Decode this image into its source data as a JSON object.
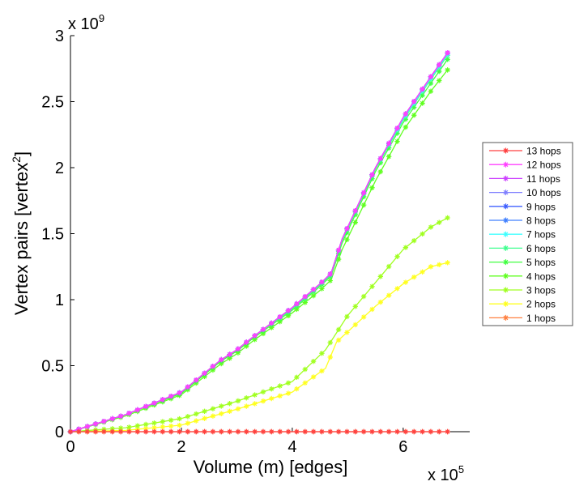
{
  "chart_data": {
    "type": "line",
    "title": "",
    "xlabel": "Volume (m) [edges]",
    "ylabel": "Vertex pairs [vertex",
    "ylabel_sup": "2",
    "ylabel_end": "]",
    "x_exponent_label": "x 10",
    "x_exponent": "5",
    "y_exponent_label": "x 10",
    "y_exponent": "9",
    "xlim": [
      0,
      7.2
    ],
    "ylim": [
      0,
      3
    ],
    "x_scale": 100000,
    "y_scale": 1000000000,
    "xticks": [
      0,
      2,
      4,
      6
    ],
    "xtick_labels": [
      "0",
      "2",
      "4",
      "6"
    ],
    "yticks": [
      0,
      0.5,
      1,
      1.5,
      2,
      2.5,
      3
    ],
    "ytick_labels": [
      "0",
      "0.5",
      "1",
      "1.5",
      "2",
      "2.5",
      "3"
    ],
    "grid": false,
    "legend_position": "right",
    "series": [
      {
        "name": "13 hops",
        "color": "#ff4040",
        "x": [
          0,
          6.8
        ],
        "y": [
          0,
          0
        ]
      },
      {
        "name": "12 hops",
        "color": "#ff40ff",
        "x": [
          0,
          1,
          2,
          2.7,
          3,
          3.3,
          4,
          4.5,
          4.7,
          4.9,
          5.5,
          6,
          6.5,
          6.8
        ],
        "y": [
          0,
          0.13,
          0.3,
          0.54,
          0.62,
          0.72,
          0.94,
          1.12,
          1.2,
          1.46,
          2.0,
          2.38,
          2.69,
          2.87
        ]
      },
      {
        "name": "11 hops",
        "color": "#cc40ff",
        "x": [
          0,
          1,
          2,
          2.7,
          3,
          3.3,
          4,
          4.5,
          4.7,
          4.9,
          5.5,
          6,
          6.5,
          6.8
        ],
        "y": [
          0,
          0.13,
          0.3,
          0.54,
          0.62,
          0.72,
          0.94,
          1.12,
          1.2,
          1.46,
          2.0,
          2.38,
          2.69,
          2.87
        ]
      },
      {
        "name": "10 hops",
        "color": "#8080ff",
        "x": [
          0,
          1,
          2,
          2.7,
          3,
          3.3,
          4,
          4.5,
          4.7,
          4.9,
          5.5,
          6,
          6.5,
          6.8
        ],
        "y": [
          0,
          0.13,
          0.3,
          0.54,
          0.62,
          0.72,
          0.94,
          1.12,
          1.2,
          1.46,
          2.0,
          2.38,
          2.69,
          2.87
        ]
      },
      {
        "name": "9 hops",
        "color": "#4060ff",
        "x": [
          0,
          1,
          2,
          2.7,
          3,
          3.3,
          4,
          4.5,
          4.7,
          4.9,
          5.5,
          6,
          6.5,
          6.8
        ],
        "y": [
          0,
          0.13,
          0.3,
          0.54,
          0.62,
          0.72,
          0.94,
          1.12,
          1.2,
          1.46,
          2.0,
          2.38,
          2.69,
          2.87
        ]
      },
      {
        "name": "8 hops",
        "color": "#4080ff",
        "x": [
          0,
          1,
          2,
          2.7,
          3,
          3.3,
          4,
          4.5,
          4.7,
          4.9,
          5.5,
          6,
          6.5,
          6.8
        ],
        "y": [
          0,
          0.13,
          0.3,
          0.54,
          0.62,
          0.72,
          0.94,
          1.12,
          1.2,
          1.46,
          2.0,
          2.38,
          2.69,
          2.87
        ]
      },
      {
        "name": "7 hops",
        "color": "#40ffff",
        "x": [
          0,
          1,
          2,
          2.7,
          3,
          3.3,
          4,
          4.5,
          4.7,
          4.9,
          5.5,
          6,
          6.5,
          6.8
        ],
        "y": [
          0,
          0.13,
          0.3,
          0.54,
          0.62,
          0.72,
          0.94,
          1.12,
          1.2,
          1.46,
          2.0,
          2.37,
          2.68,
          2.86
        ]
      },
      {
        "name": "6 hops",
        "color": "#40ff90",
        "x": [
          0,
          1,
          2,
          2.7,
          3,
          3.3,
          4,
          4.5,
          4.7,
          4.9,
          5.5,
          6,
          6.5,
          6.8
        ],
        "y": [
          0,
          0.13,
          0.3,
          0.54,
          0.62,
          0.72,
          0.93,
          1.11,
          1.19,
          1.45,
          1.99,
          2.36,
          2.67,
          2.85
        ]
      },
      {
        "name": "5 hops",
        "color": "#40ff40",
        "x": [
          0,
          1,
          2,
          2.7,
          3,
          3.3,
          4,
          4.5,
          4.7,
          4.9,
          5.5,
          6,
          6.5,
          6.8
        ],
        "y": [
          0,
          0.13,
          0.29,
          0.53,
          0.61,
          0.71,
          0.92,
          1.1,
          1.18,
          1.43,
          1.97,
          2.34,
          2.64,
          2.82
        ]
      },
      {
        "name": "4 hops",
        "color": "#60ff20",
        "x": [
          0,
          1,
          2,
          2.7,
          3,
          3.3,
          4,
          4.5,
          4.7,
          4.9,
          5.5,
          6,
          6.5,
          6.8
        ],
        "y": [
          0,
          0.12,
          0.28,
          0.51,
          0.59,
          0.69,
          0.9,
          1.07,
          1.15,
          1.38,
          1.9,
          2.28,
          2.58,
          2.74
        ]
      },
      {
        "name": "3 hops",
        "color": "#a0ff20",
        "x": [
          0,
          1,
          2,
          3,
          4,
          4.6,
          5,
          5.5,
          6,
          6.5,
          6.8
        ],
        "y": [
          0,
          0.03,
          0.1,
          0.23,
          0.38,
          0.62,
          0.88,
          1.13,
          1.38,
          1.55,
          1.62
        ]
      },
      {
        "name": "2 hops",
        "color": "#ffff20",
        "x": [
          0,
          1,
          2,
          3,
          4,
          4.6,
          4.8,
          5.5,
          6,
          6.5,
          6.8
        ],
        "y": [
          0,
          0.01,
          0.05,
          0.17,
          0.3,
          0.48,
          0.68,
          0.95,
          1.12,
          1.25,
          1.28
        ]
      },
      {
        "name": "1 hops",
        "color": "#ff8040",
        "x": [
          0,
          6.8
        ],
        "y": [
          0,
          0
        ]
      }
    ]
  }
}
